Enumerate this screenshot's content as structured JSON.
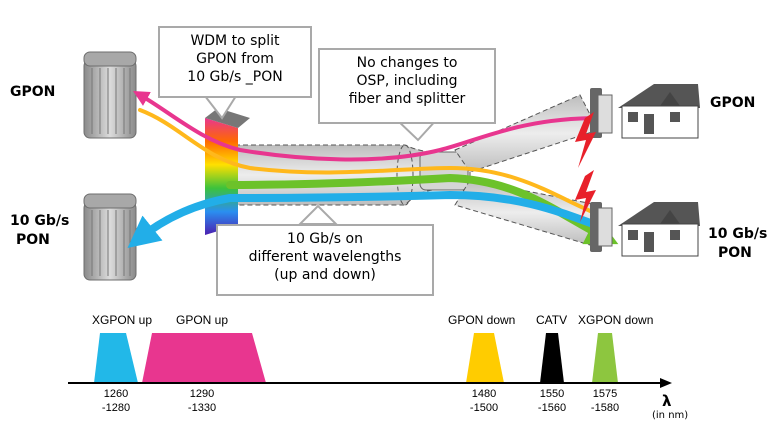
{
  "labels": {
    "gpon_left": "GPON",
    "xgpon_left_1": "10 Gb/s",
    "xgpon_left_2": "PON",
    "gpon_right": "GPON",
    "xgpon_right_1": "10 Gb/s",
    "xgpon_right_2": "PON"
  },
  "callouts": {
    "wdm": [
      "WDM to split",
      "GPON from",
      "10 Gb/s _PON"
    ],
    "osp": [
      "No changes to",
      "OSP, including",
      "fiber and splitter"
    ],
    "wavelengths": [
      "10 Gb/s on",
      "different wavelengths",
      "(up and down)"
    ]
  },
  "spectrum": {
    "axis_symbol": "λ",
    "axis_unit": "(in nm)",
    "bands": [
      {
        "name": "XGPON up",
        "range_top": "1260",
        "range_bottom": "-1280",
        "color": "#22b8e8"
      },
      {
        "name": "GPON up",
        "range_top": "1290",
        "range_bottom": "-1330",
        "color": "#e8368f"
      },
      {
        "name": "GPON down",
        "range_top": "1480",
        "range_bottom": "-1500",
        "color": "#ffcc00"
      },
      {
        "name": "CATV",
        "range_top": "1550",
        "range_bottom": "-1560",
        "color": "#000000"
      },
      {
        "name": "XGPON down",
        "range_top": "1575",
        "range_bottom": "-1580",
        "color": "#8dc63f"
      }
    ]
  },
  "colors": {
    "gpon_up": "#e8368f",
    "gpon_down": "#ffb81c",
    "xgpon_up": "#22aee8",
    "xgpon_down": "#6cc22a",
    "signal": "#e8202a"
  }
}
